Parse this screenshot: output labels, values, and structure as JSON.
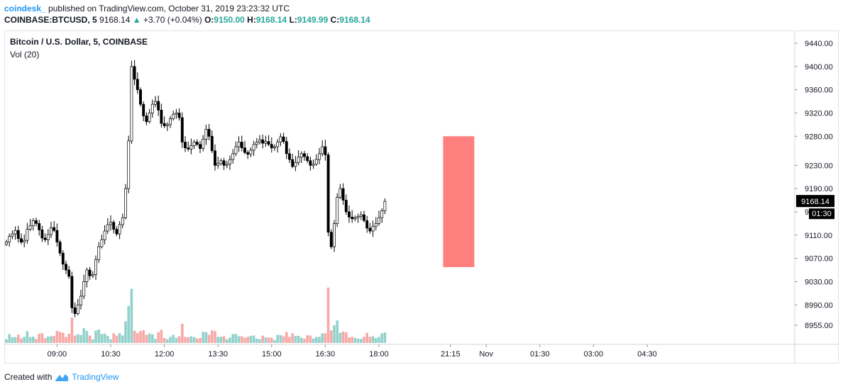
{
  "header": {
    "author": "coindesk_",
    "published": "published on TradingView.com, October 31, 2019 23:23:32 UTC",
    "symbol": "COINBASE:BTCUSD, 5",
    "price": "9168.14",
    "change": "+3.70 (+0.04%)",
    "o_label": "O:",
    "o_value": "9150.00",
    "h_label": "H:",
    "h_value": "9168.14",
    "l_label": "L:",
    "l_value": "9149.99",
    "c_label": "C:",
    "c_value": "9168.14"
  },
  "pane_title": "Bitcoin / U.S. Dollar, 5, COINBASE",
  "volume_label": "Vol (20)",
  "footer": {
    "created_with": "Created with",
    "brand": "TradingView"
  },
  "colors": {
    "up": "#26a69a",
    "down": "#ef5350",
    "highlight": "#ff7070",
    "brand": "#2196f3"
  },
  "chart_data": {
    "type": "candlestick",
    "title": "Bitcoin / U.S. Dollar, 5, COINBASE",
    "y_ticks": [
      9440,
      9400,
      9360,
      9320,
      9280,
      9230,
      9190,
      9150,
      9110,
      9070,
      9030,
      8990,
      8955
    ],
    "y_tick_labels": [
      "9440.00",
      "9400.00",
      "9360.00",
      "9320.00",
      "9280.00",
      "9230.00",
      "9190.00",
      "9150.00",
      "9110.00",
      "9070.00",
      "9030.00",
      "8990.00",
      "8955.00"
    ],
    "x_tick_labels": [
      "09:00",
      "10:30",
      "12:00",
      "13:30",
      "15:00",
      "16:30",
      "18:00",
      "21:15",
      "Nov",
      "01:30",
      "03:00",
      "04:30"
    ],
    "x_tick_slots": [
      17,
      35,
      53,
      71,
      89,
      107,
      125,
      149,
      161,
      179,
      197,
      215
    ],
    "last_price_label": "9168.14",
    "countdown_label": "01:30",
    "highlight_range": {
      "slot_start": 147,
      "slot_end": 157,
      "price_low": 9055,
      "price_high": 9280
    },
    "candles_close": [
      9098,
      9108,
      9112,
      9118,
      9104,
      9098,
      9101,
      9120,
      9126,
      9135,
      9130,
      9119,
      9105,
      9102,
      9111,
      9123,
      9118,
      9098,
      9079,
      9060,
      9050,
      9039,
      8985,
      8975,
      8990,
      9005,
      9030,
      9050,
      9040,
      9042,
      9068,
      9090,
      9102,
      9117,
      9128,
      9132,
      9120,
      9112,
      9128,
      9140,
      9190,
      9272,
      9400,
      9378,
      9360,
      9335,
      9315,
      9305,
      9320,
      9335,
      9340,
      9325,
      9302,
      9298,
      9300,
      9310,
      9318,
      9320,
      9312,
      9270,
      9260,
      9258,
      9264,
      9270,
      9266,
      9259,
      9275,
      9292,
      9280,
      9255,
      9230,
      9233,
      9238,
      9230,
      9232,
      9240,
      9250,
      9262,
      9270,
      9260,
      9252,
      9249,
      9256,
      9266,
      9270,
      9274,
      9268,
      9271,
      9266,
      9260,
      9262,
      9270,
      9279,
      9271,
      9250,
      9240,
      9228,
      9235,
      9244,
      9250,
      9245,
      9238,
      9230,
      9232,
      9240,
      9250,
      9262,
      9248,
      9115,
      9090,
      9130,
      9175,
      9190,
      9170,
      9150,
      9141,
      9138,
      9140,
      9142,
      9145,
      9135,
      9122,
      9117,
      9125,
      9130,
      9140,
      9152,
      9168
    ],
    "volume_note": "volume histogram shown at bottom of pane, peak near 12:00"
  }
}
